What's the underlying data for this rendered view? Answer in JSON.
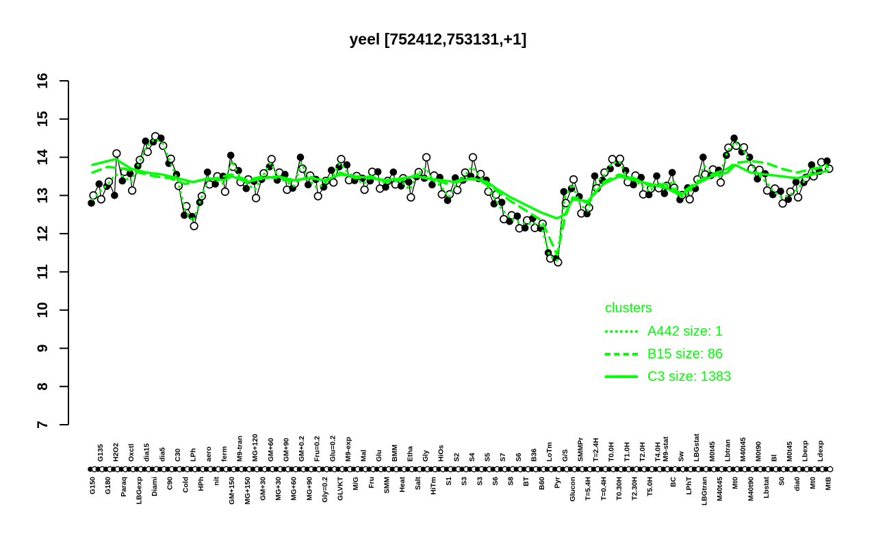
{
  "title": "yeel [752412,753131,+1]",
  "chart_data": {
    "type": "scatter",
    "title": "yeel [752412,753131,+1]",
    "xlabel": "",
    "ylabel": "",
    "ylim": [
      7,
      16
    ],
    "yticks": [
      7,
      8,
      9,
      10,
      11,
      12,
      13,
      14,
      15,
      16
    ],
    "grid": false,
    "colors": {
      "background": "#FFFFFF",
      "axis": "#000000",
      "points_filled": "#000000",
      "points_open_fill": "#FFFFFF",
      "cluster_lines": "#00FF00"
    },
    "legend": {
      "title": "clusters",
      "position": "right-lower",
      "color": "#00FF00",
      "entries": [
        {
          "label": "A442 size: 1",
          "line_style": "dotted"
        },
        {
          "label": "B15 size: 86",
          "line_style": "dashed"
        },
        {
          "label": "C3 size: 1383",
          "line_style": "solid"
        }
      ]
    },
    "conditions": [
      [
        "G150",
        "b"
      ],
      [
        "G135",
        "t"
      ],
      [
        "G180",
        "b"
      ],
      [
        "H2O2",
        "t"
      ],
      [
        "Paraq",
        "b"
      ],
      [
        "Oxctl",
        "t"
      ],
      [
        "LBGexp",
        "b"
      ],
      [
        "dia15",
        "t"
      ],
      [
        "Diami",
        "b"
      ],
      [
        "dia5",
        "t"
      ],
      [
        "C90",
        "b"
      ],
      [
        "C30",
        "t"
      ],
      [
        "Cold",
        "b"
      ],
      [
        "LPh",
        "t"
      ],
      [
        "HPh",
        "b"
      ],
      [
        "aero",
        "t"
      ],
      [
        "nit",
        "b"
      ],
      [
        "ferm",
        "t"
      ],
      [
        "GM+150",
        "b"
      ],
      [
        "M9-tran",
        "t"
      ],
      [
        "MG+150",
        "b"
      ],
      [
        "MG+120",
        "t"
      ],
      [
        "GM+30",
        "b"
      ],
      [
        "GM+60",
        "t"
      ],
      [
        "MG+30",
        "b"
      ],
      [
        "GM+90",
        "t"
      ],
      [
        "MG+60",
        "b"
      ],
      [
        "GM+0.2",
        "t"
      ],
      [
        "MG+90",
        "b"
      ],
      [
        "Fru=0.2",
        "t"
      ],
      [
        "Gly=0.2",
        "b"
      ],
      [
        "Glu=0.2",
        "t"
      ],
      [
        "GLVKT",
        "b"
      ],
      [
        "M9-exp",
        "t"
      ],
      [
        "M/G",
        "b"
      ],
      [
        "Mal",
        "t"
      ],
      [
        "Fru",
        "b"
      ],
      [
        "Glu",
        "t"
      ],
      [
        "SMM",
        "b"
      ],
      [
        "BMM",
        "t"
      ],
      [
        "Heat",
        "b"
      ],
      [
        "Etha",
        "t"
      ],
      [
        "Salt",
        "b"
      ],
      [
        "Gly",
        "t"
      ],
      [
        "HiTm",
        "b"
      ],
      [
        "HiOs",
        "t"
      ],
      [
        "S1",
        "b"
      ],
      [
        "S2",
        "t"
      ],
      [
        "S3",
        "b"
      ],
      [
        "S4",
        "t"
      ],
      [
        "S3",
        "b"
      ],
      [
        "S5",
        "t"
      ],
      [
        "S6",
        "b"
      ],
      [
        "S7",
        "t"
      ],
      [
        "S8",
        "b"
      ],
      [
        "S6",
        "t"
      ],
      [
        "BT",
        "b"
      ],
      [
        "B36",
        "t"
      ],
      [
        "B60",
        "b"
      ],
      [
        "LoTm",
        "t"
      ],
      [
        "Pyr",
        "b"
      ],
      [
        "G/S",
        "t"
      ],
      [
        "Glucon",
        "b"
      ],
      [
        "SMMPr",
        "t"
      ],
      [
        "T=5.4H",
        "b"
      ],
      [
        "T=2.4H",
        "t"
      ],
      [
        "T=0.4H",
        "b"
      ],
      [
        "T0.0H",
        "t"
      ],
      [
        "T0.30H",
        "b"
      ],
      [
        "T1.0H",
        "t"
      ],
      [
        "T2.30H",
        "b"
      ],
      [
        "T2.0H",
        "t"
      ],
      [
        "T5.0H",
        "b"
      ],
      [
        "T4.0H",
        "t"
      ],
      [
        "M9-stat",
        "t"
      ],
      [
        "BC",
        "b"
      ],
      [
        "Sw",
        "t"
      ],
      [
        "LPhT",
        "b"
      ],
      [
        "LBGstat",
        "t"
      ],
      [
        "LBGtran",
        "b"
      ],
      [
        "M0t45",
        "t"
      ],
      [
        "M40t45",
        "b"
      ],
      [
        "Lbtran",
        "t"
      ],
      [
        "Mt0",
        "b"
      ],
      [
        "M40t45",
        "t"
      ],
      [
        "M40t90",
        "b"
      ],
      [
        "M0t90",
        "t"
      ],
      [
        "Lbstat",
        "b"
      ],
      [
        "Bl",
        "t"
      ],
      [
        "S0",
        "b"
      ],
      [
        "M0t45",
        "t"
      ],
      [
        "dia0",
        "b"
      ],
      [
        "Lbexp",
        "t"
      ],
      [
        "Mt0",
        "b"
      ],
      [
        "Ldexp",
        "t"
      ],
      [
        "MtB",
        "b"
      ]
    ],
    "pairs_filled_open": [
      [
        12.8,
        13.0
      ],
      [
        13.3,
        12.9
      ],
      [
        13.24,
        13.36
      ],
      [
        13.0,
        14.1
      ],
      [
        13.38,
        13.62
      ],
      [
        13.57,
        13.13
      ],
      [
        13.77,
        13.93
      ],
      [
        14.42,
        14.14
      ],
      [
        14.4,
        14.55
      ],
      [
        14.5,
        14.3
      ],
      [
        13.84,
        13.96
      ],
      [
        13.55,
        13.25
      ],
      [
        12.48,
        12.72
      ],
      [
        12.45,
        12.2
      ],
      [
        12.82,
        12.98
      ],
      [
        13.61,
        13.29
      ],
      [
        13.3,
        13.5
      ],
      [
        13.5,
        13.1
      ],
      [
        14.05,
        13.75
      ],
      [
        13.65,
        13.35
      ],
      [
        13.18,
        13.42
      ],
      [
        13.37,
        12.93
      ],
      [
        13.42,
        13.58
      ],
      [
        13.75,
        13.95
      ],
      [
        13.4,
        13.6
      ],
      [
        13.55,
        13.15
      ],
      [
        13.19,
        13.31
      ],
      [
        14.0,
        13.7
      ],
      [
        13.28,
        13.52
      ],
      [
        13.42,
        12.98
      ],
      [
        13.22,
        13.38
      ],
      [
        13.66,
        13.34
      ],
      [
        13.75,
        13.95
      ],
      [
        13.8,
        13.4
      ],
      [
        13.39,
        13.51
      ],
      [
        13.45,
        13.15
      ],
      [
        13.38,
        13.62
      ],
      [
        13.62,
        13.18
      ],
      [
        13.22,
        13.38
      ],
      [
        13.61,
        13.29
      ],
      [
        13.25,
        13.45
      ],
      [
        13.35,
        12.95
      ],
      [
        13.49,
        13.61
      ],
      [
        13.45,
        14.0
      ],
      [
        13.28,
        13.52
      ],
      [
        13.47,
        13.03
      ],
      [
        12.87,
        13.03
      ],
      [
        13.46,
        13.14
      ],
      [
        13.4,
        13.6
      ],
      [
        13.5,
        14.0
      ],
      [
        13.44,
        13.56
      ],
      [
        13.4,
        13.1
      ],
      [
        12.78,
        13.02
      ],
      [
        12.82,
        12.38
      ],
      [
        12.32,
        12.48
      ],
      [
        12.46,
        12.14
      ],
      [
        12.15,
        12.35
      ],
      [
        12.4,
        12.15
      ],
      [
        12.14,
        12.26
      ],
      [
        11.5,
        11.35
      ],
      [
        11.35,
        11.25
      ],
      [
        13.1,
        12.8
      ],
      [
        13.18,
        13.42
      ],
      [
        12.97,
        12.53
      ],
      [
        12.52,
        12.68
      ],
      [
        13.51,
        13.19
      ],
      [
        13.4,
        13.6
      ],
      [
        13.7,
        13.95
      ],
      [
        13.84,
        13.96
      ],
      [
        13.65,
        13.35
      ],
      [
        13.28,
        13.52
      ],
      [
        13.47,
        13.03
      ],
      [
        13.02,
        13.18
      ],
      [
        13.51,
        13.19
      ],
      [
        13.05,
        13.25
      ],
      [
        13.6,
        13.2
      ],
      [
        12.89,
        13.01
      ],
      [
        13.2,
        12.9
      ],
      [
        13.18,
        13.42
      ],
      [
        14.0,
        13.55
      ],
      [
        13.52,
        13.68
      ],
      [
        13.66,
        13.34
      ],
      [
        14.05,
        14.25
      ],
      [
        14.5,
        14.3
      ],
      [
        14.14,
        14.26
      ],
      [
        14.0,
        13.7
      ],
      [
        13.43,
        13.67
      ],
      [
        13.57,
        13.13
      ],
      [
        13.02,
        13.18
      ],
      [
        13.11,
        12.79
      ],
      [
        12.9,
        13.1
      ],
      [
        13.35,
        12.95
      ],
      [
        13.34,
        13.46
      ],
      [
        13.8,
        13.5
      ],
      [
        13.63,
        13.87
      ],
      [
        13.9,
        13.7
      ]
    ],
    "cluster_line_C3_solid": [
      [
        0,
        13.8
      ],
      [
        2,
        13.9
      ],
      [
        3,
        13.95
      ],
      [
        5,
        13.7
      ],
      [
        7,
        13.6
      ],
      [
        9,
        13.55
      ],
      [
        11,
        13.45
      ],
      [
        13,
        13.35
      ],
      [
        15,
        13.45
      ],
      [
        17,
        13.4
      ],
      [
        18,
        13.5
      ],
      [
        20,
        13.35
      ],
      [
        22,
        13.45
      ],
      [
        24,
        13.5
      ],
      [
        26,
        13.4
      ],
      [
        28,
        13.45
      ],
      [
        30,
        13.4
      ],
      [
        32,
        13.55
      ],
      [
        34,
        13.5
      ],
      [
        36,
        13.45
      ],
      [
        38,
        13.4
      ],
      [
        40,
        13.45
      ],
      [
        42,
        13.5
      ],
      [
        43,
        13.45
      ],
      [
        45,
        13.4
      ],
      [
        47,
        13.35
      ],
      [
        49,
        13.45
      ],
      [
        51,
        13.35
      ],
      [
        52,
        13.2
      ],
      [
        54,
        12.95
      ],
      [
        56,
        12.75
      ],
      [
        58,
        12.55
      ],
      [
        60,
        12.4
      ],
      [
        61,
        12.5
      ],
      [
        62,
        12.9
      ],
      [
        64,
        12.85
      ],
      [
        65,
        13.1
      ],
      [
        66,
        13.3
      ],
      [
        68,
        13.5
      ],
      [
        70,
        13.4
      ],
      [
        72,
        13.3
      ],
      [
        74,
        13.2
      ],
      [
        76,
        13.0
      ],
      [
        78,
        13.3
      ],
      [
        80,
        13.5
      ],
      [
        82,
        13.6
      ],
      [
        83,
        13.8
      ],
      [
        85,
        13.6
      ],
      [
        87,
        13.55
      ],
      [
        89,
        13.5
      ],
      [
        91,
        13.45
      ],
      [
        93,
        13.55
      ],
      [
        95,
        13.65
      ]
    ],
    "cluster_line_B15_dashed": [
      [
        0,
        13.6
      ],
      [
        2,
        13.75
      ],
      [
        4,
        13.7
      ],
      [
        6,
        13.6
      ],
      [
        8,
        13.5
      ],
      [
        10,
        13.45
      ],
      [
        12,
        13.3
      ],
      [
        14,
        13.4
      ],
      [
        16,
        13.45
      ],
      [
        18,
        13.55
      ],
      [
        20,
        13.4
      ],
      [
        22,
        13.5
      ],
      [
        24,
        13.45
      ],
      [
        26,
        13.35
      ],
      [
        28,
        13.5
      ],
      [
        30,
        13.35
      ],
      [
        32,
        13.6
      ],
      [
        34,
        13.45
      ],
      [
        36,
        13.5
      ],
      [
        38,
        13.35
      ],
      [
        40,
        13.4
      ],
      [
        42,
        13.55
      ],
      [
        44,
        13.4
      ],
      [
        46,
        13.3
      ],
      [
        48,
        13.45
      ],
      [
        50,
        13.4
      ],
      [
        52,
        13.15
      ],
      [
        54,
        12.85
      ],
      [
        56,
        12.6
      ],
      [
        58,
        12.35
      ],
      [
        59,
        11.9
      ],
      [
        60,
        11.45
      ],
      [
        61,
        12.4
      ],
      [
        62,
        12.95
      ],
      [
        64,
        12.8
      ],
      [
        66,
        13.35
      ],
      [
        68,
        13.55
      ],
      [
        70,
        13.45
      ],
      [
        72,
        13.25
      ],
      [
        74,
        13.3
      ],
      [
        76,
        13.05
      ],
      [
        78,
        13.35
      ],
      [
        80,
        13.55
      ],
      [
        82,
        13.7
      ],
      [
        83,
        13.85
      ],
      [
        85,
        13.9
      ],
      [
        87,
        13.85
      ],
      [
        89,
        13.7
      ],
      [
        91,
        13.6
      ],
      [
        93,
        13.7
      ],
      [
        95,
        13.75
      ]
    ],
    "cluster_line_A442_dotted": "follows_pair_midpoints"
  }
}
